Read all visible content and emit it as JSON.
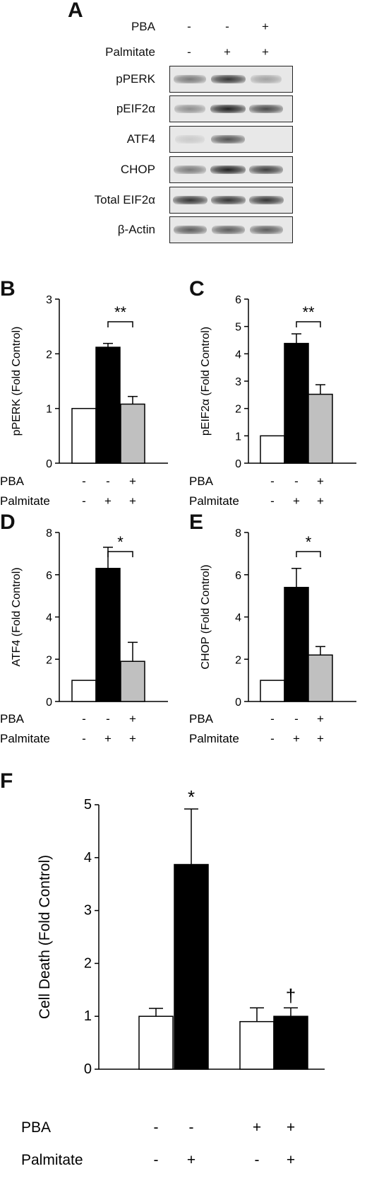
{
  "panels": {
    "A": "A",
    "B": "B",
    "C": "C",
    "D": "D",
    "E": "E",
    "F": "F"
  },
  "blot": {
    "treatments": [
      {
        "label": "PBA",
        "signs": [
          "-",
          "-",
          "+"
        ]
      },
      {
        "label": "Palmitate",
        "signs": [
          "-",
          "+",
          "+"
        ]
      }
    ],
    "rows": [
      {
        "label": "pPERK",
        "intensity": [
          0.55,
          0.9,
          0.35
        ]
      },
      {
        "label": "pEIF2α",
        "intensity": [
          0.45,
          1.0,
          0.8
        ]
      },
      {
        "label": "ATF4",
        "intensity": [
          0.15,
          0.75,
          0.0
        ]
      },
      {
        "label": "CHOP",
        "intensity": [
          0.55,
          1.0,
          0.85
        ]
      },
      {
        "label": "Total EIF2α",
        "intensity": [
          0.9,
          0.9,
          0.9
        ]
      },
      {
        "label": "β-Actin",
        "intensity": [
          0.7,
          0.7,
          0.7
        ]
      }
    ]
  },
  "colors": {
    "control": "#ffffff",
    "palmitate": "#000000",
    "pba": "#c0c0c0",
    "stroke": "#000000"
  },
  "chart_data": [
    {
      "type": "bar",
      "panel": "B",
      "ylabel": "pPERK (Fold Control)",
      "ylim": [
        0,
        3
      ],
      "yticks": [
        "0",
        "1",
        "2",
        "3"
      ],
      "treatments": [
        {
          "label": "PBA",
          "signs": [
            "-",
            "-",
            "+"
          ]
        },
        {
          "label": "Palmitate",
          "signs": [
            "-",
            "+",
            "+"
          ]
        }
      ],
      "values": [
        1.0,
        2.12,
        1.08
      ],
      "errors": [
        0,
        0.07,
        0.14
      ],
      "significance": "**",
      "significance_between": [
        1,
        2
      ]
    },
    {
      "type": "bar",
      "panel": "C",
      "ylabel": "pEIF2α (Fold Control)",
      "ylim": [
        0,
        6
      ],
      "yticks": [
        "0",
        "1",
        "2",
        "3",
        "4",
        "5",
        "6"
      ],
      "treatments": [
        {
          "label": "PBA",
          "signs": [
            "-",
            "-",
            "+"
          ]
        },
        {
          "label": "Palmitate",
          "signs": [
            "-",
            "+",
            "+"
          ]
        }
      ],
      "values": [
        1.0,
        4.38,
        2.52
      ],
      "errors": [
        0,
        0.35,
        0.35
      ],
      "significance": "**",
      "significance_between": [
        1,
        2
      ]
    },
    {
      "type": "bar",
      "panel": "D",
      "ylabel": "ATF4 (Fold Control)",
      "ylim": [
        0,
        8
      ],
      "yticks": [
        "0",
        "2",
        "4",
        "6",
        "8"
      ],
      "treatments": [
        {
          "label": "PBA",
          "signs": [
            "-",
            "-",
            "+"
          ]
        },
        {
          "label": "Palmitate",
          "signs": [
            "-",
            "+",
            "+"
          ]
        }
      ],
      "values": [
        1.0,
        6.3,
        1.9
      ],
      "errors": [
        0,
        1.0,
        0.9
      ],
      "significance": "*",
      "significance_between": [
        1,
        2
      ]
    },
    {
      "type": "bar",
      "panel": "E",
      "ylabel": "CHOP (Fold Control)",
      "ylim": [
        0,
        8
      ],
      "yticks": [
        "0",
        "2",
        "4",
        "6",
        "8"
      ],
      "treatments": [
        {
          "label": "PBA",
          "signs": [
            "-",
            "-",
            "+"
          ]
        },
        {
          "label": "Palmitate",
          "signs": [
            "-",
            "+",
            "+"
          ]
        }
      ],
      "values": [
        1.0,
        5.4,
        2.2
      ],
      "errors": [
        0,
        0.9,
        0.4
      ],
      "significance": "*",
      "significance_between": [
        1,
        2
      ]
    },
    {
      "type": "bar",
      "panel": "F",
      "ylabel": "Cell Death (Fold Control)",
      "ylim": [
        0,
        5
      ],
      "yticks": [
        "0",
        "1",
        "2",
        "3",
        "4",
        "5"
      ],
      "treatments": [
        {
          "label": "PBA",
          "signs": [
            "-",
            "-",
            "+",
            "+"
          ]
        },
        {
          "label": "Palmitate",
          "signs": [
            "-",
            "+",
            "-",
            "+"
          ]
        }
      ],
      "values": [
        1.0,
        3.87,
        0.9,
        1.0
      ],
      "errors": [
        0.15,
        1.05,
        0.26,
        0.16
      ],
      "markers": [
        "",
        "*",
        "",
        "†"
      ]
    }
  ]
}
